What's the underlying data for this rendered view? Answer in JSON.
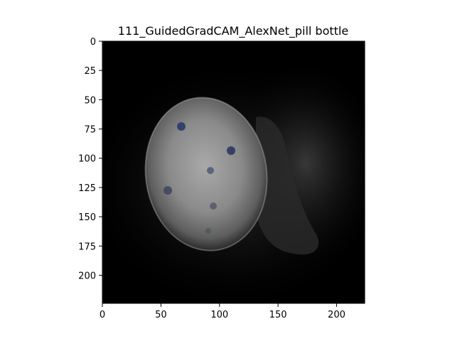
{
  "chart_data": {
    "type": "heatmap",
    "title": "111_GuidedGradCAM_AlexNet_pill bottle",
    "xlabel": "",
    "ylabel": "",
    "xlim": [
      0,
      224
    ],
    "ylim": [
      224,
      0
    ],
    "xticks": [
      0,
      50,
      100,
      150,
      200
    ],
    "yticks": [
      0,
      25,
      50,
      75,
      100,
      125,
      150,
      175,
      200
    ],
    "grid": false,
    "legend": "none",
    "colors": {
      "background": "#000000",
      "highlight": "#c8c8c8",
      "axis": "#000000"
    }
  }
}
